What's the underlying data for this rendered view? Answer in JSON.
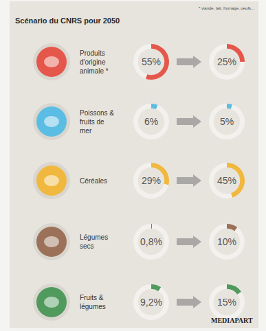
{
  "chart_data": {
    "type": "donut",
    "title": "Scénario du CNRS pour 2050",
    "note": "* viande, lait, fromage, oeufs...",
    "source": "MEDIAPART",
    "categories": [
      "Produits d'origine animale *",
      "Poissons & fruits de mer",
      "Céréales",
      "Légumes secs",
      "Fruits & légumes"
    ],
    "colors": [
      "#e5574b",
      "#5bbde3",
      "#f0b83e",
      "#9c7159",
      "#4f9a5c"
    ],
    "ylim": [
      0,
      100
    ],
    "data_labels": true,
    "series": [
      {
        "values": [
          55,
          6,
          29,
          0.8,
          9.2
        ],
        "value_labels": [
          "55%",
          "6%",
          "29%",
          "0,8%",
          "9,2%"
        ]
      },
      {
        "values": [
          25,
          5,
          45,
          10,
          15
        ],
        "value_labels": [
          "25%",
          "5%",
          "45%",
          "10%",
          "15%"
        ]
      }
    ]
  }
}
